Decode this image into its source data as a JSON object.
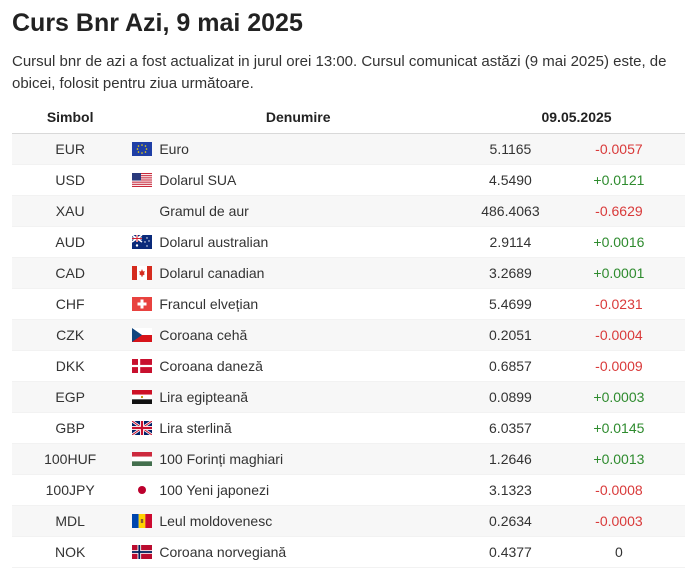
{
  "title": "Curs Bnr Azi, 9 mai 2025",
  "intro": "Cursul bnr de azi a fost actualizat in jurul orei 13:00. Cursul comunicat astăzi (9 mai 2025) este, de obicei, folosit pentru ziua următoare.",
  "table": {
    "headers": {
      "symbol": "Simbol",
      "name": "Denumire",
      "date": "09.05.2025"
    },
    "rows": [
      {
        "symbol": "EUR",
        "flag": "eu-flag-icon",
        "name": "Euro",
        "value": "5.1165",
        "change": "-0.0057",
        "trend": "neg"
      },
      {
        "symbol": "USD",
        "flag": "us-flag-icon",
        "name": "Dolarul SUA",
        "value": "4.5490",
        "change": "+0.0121",
        "trend": "pos"
      },
      {
        "symbol": "XAU",
        "flag": "",
        "name": "Gramul de aur",
        "value": "486.4063",
        "change": "-0.6629",
        "trend": "neg"
      },
      {
        "symbol": "AUD",
        "flag": "au-flag-icon",
        "name": "Dolarul australian",
        "value": "2.9114",
        "change": "+0.0016",
        "trend": "pos"
      },
      {
        "symbol": "CAD",
        "flag": "ca-flag-icon",
        "name": "Dolarul canadian",
        "value": "3.2689",
        "change": "+0.0001",
        "trend": "pos"
      },
      {
        "symbol": "CHF",
        "flag": "ch-flag-icon",
        "name": "Francul elvețian",
        "value": "5.4699",
        "change": "-0.0231",
        "trend": "neg"
      },
      {
        "symbol": "CZK",
        "flag": "cz-flag-icon",
        "name": "Coroana cehă",
        "value": "0.2051",
        "change": "-0.0004",
        "trend": "neg"
      },
      {
        "symbol": "DKK",
        "flag": "dk-flag-icon",
        "name": "Coroana daneză",
        "value": "0.6857",
        "change": "-0.0009",
        "trend": "neg"
      },
      {
        "symbol": "EGP",
        "flag": "eg-flag-icon",
        "name": "Lira egipteană",
        "value": "0.0899",
        "change": "+0.0003",
        "trend": "pos"
      },
      {
        "symbol": "GBP",
        "flag": "gb-flag-icon",
        "name": "Lira sterlină",
        "value": "6.0357",
        "change": "+0.0145",
        "trend": "pos"
      },
      {
        "symbol": "100HUF",
        "flag": "hu-flag-icon",
        "name": "100 Forinți maghiari",
        "value": "1.2646",
        "change": "+0.0013",
        "trend": "pos"
      },
      {
        "symbol": "100JPY",
        "flag": "jp-flag-icon",
        "name": "100 Yeni japonezi",
        "value": "3.1323",
        "change": "-0.0008",
        "trend": "neg"
      },
      {
        "symbol": "MDL",
        "flag": "md-flag-icon",
        "name": "Leul moldovenesc",
        "value": "0.2634",
        "change": "-0.0003",
        "trend": "neg"
      },
      {
        "symbol": "NOK",
        "flag": "no-flag-icon",
        "name": "Coroana norvegiană",
        "value": "0.4377",
        "change": "0",
        "trend": "zero"
      }
    ]
  },
  "colors": {
    "positive": "#2e8b2e",
    "negative": "#d93a3a",
    "stripe": "#f7f7f7"
  }
}
